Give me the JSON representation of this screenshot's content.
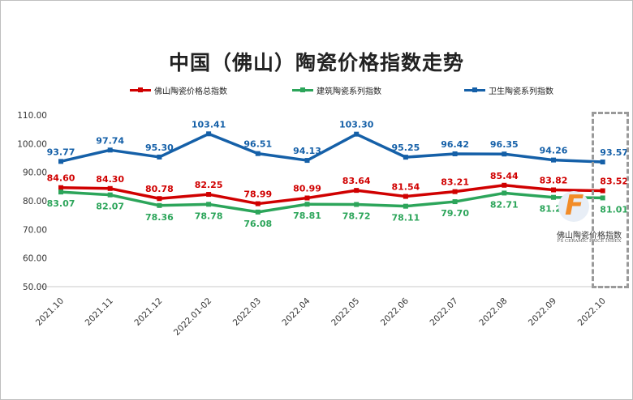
{
  "chart_data": {
    "type": "line",
    "title": "中国（佛山）陶瓷价格指数走势",
    "categories": [
      "2021.10",
      "2021.11",
      "2021.12",
      "2022.01-02",
      "2022.03",
      "2022.04",
      "2022.05",
      "2022.06",
      "2022.07",
      "2022.08",
      "2022.09",
      "2022.10"
    ],
    "ylim": [
      50,
      110
    ],
    "yticks": [
      "50.00",
      "60.00",
      "70.00",
      "80.00",
      "90.00",
      "100.00",
      "110.00"
    ],
    "grid": false,
    "legend_position": "top",
    "series": [
      {
        "name": "佛山陶瓷价格总指数",
        "color": "#d00000",
        "labels_above": true,
        "values": [
          84.6,
          84.3,
          80.78,
          82.25,
          78.99,
          80.99,
          83.64,
          81.54,
          83.21,
          85.44,
          83.82,
          83.52
        ]
      },
      {
        "name": "建筑陶瓷系列指数",
        "color": "#2ca55a",
        "labels_above": false,
        "values": [
          83.07,
          82.07,
          78.36,
          78.78,
          76.08,
          78.81,
          78.72,
          78.11,
          79.7,
          82.71,
          81.21,
          81.01
        ]
      },
      {
        "name": "卫生陶瓷系列指数",
        "color": "#1560a8",
        "labels_above": true,
        "values": [
          93.77,
          97.74,
          95.3,
          103.41,
          96.51,
          94.13,
          103.3,
          95.25,
          96.42,
          96.35,
          94.26,
          93.57
        ]
      }
    ]
  },
  "logo": {
    "letter": "F",
    "name": "佛山陶瓷价格指数",
    "english": "FS CERAMIC PRICE INDEX"
  }
}
